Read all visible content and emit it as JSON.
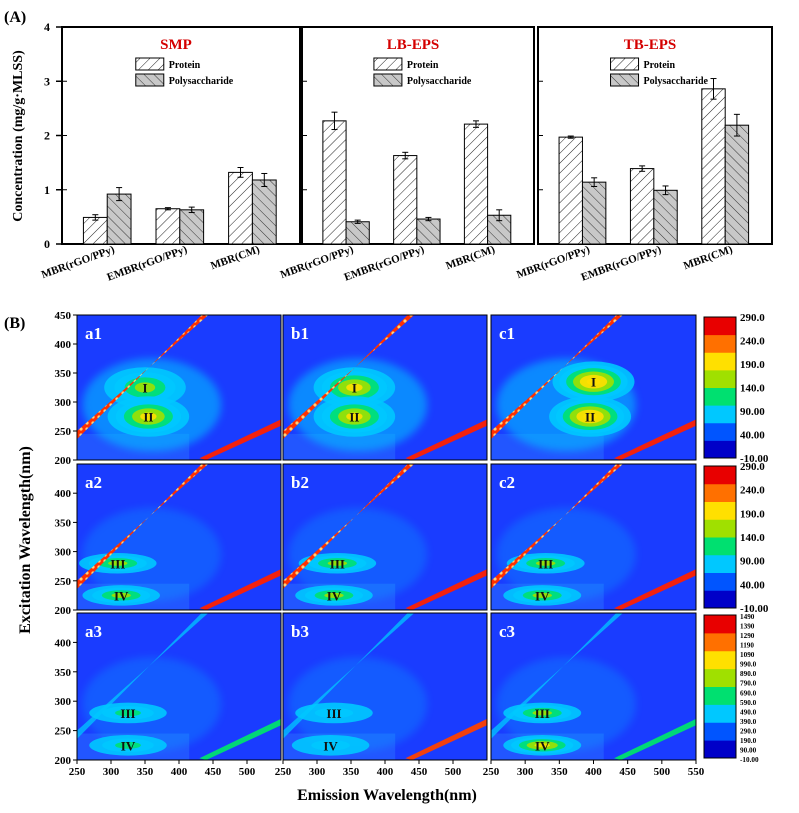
{
  "figure_labels": {
    "part_a": "(A)",
    "part_b": "(B)"
  },
  "chart_data": [
    {
      "type": "bar",
      "title": "SMP",
      "ylabel": "Concentration (mg/g·MLSS)",
      "ylim": [
        0,
        4
      ],
      "yticks": [
        "0",
        "1",
        "2",
        "3",
        "4"
      ],
      "categories": [
        "MBR(rGO/PPy)",
        "EMBR(rGO/PPy)",
        "MBR(CM)"
      ],
      "legend": {
        "position": "top-right"
      },
      "series": [
        {
          "name": "Protein",
          "values": [
            0.49,
            0.65,
            1.32
          ],
          "errors": [
            0.05,
            0.02,
            0.09
          ]
        },
        {
          "name": "Polysaccharide",
          "values": [
            0.92,
            0.63,
            1.18
          ],
          "errors": [
            0.12,
            0.05,
            0.12
          ]
        }
      ]
    },
    {
      "type": "bar",
      "title": "LB-EPS",
      "ylim": [
        0,
        4
      ],
      "categories": [
        "MBR(rGO/PPy)",
        "EMBR(rGO/PPy)",
        "MBR(CM)"
      ],
      "legend": {
        "position": "top-right"
      },
      "series": [
        {
          "name": "Protein",
          "values": [
            2.27,
            1.63,
            2.21
          ],
          "errors": [
            0.16,
            0.06,
            0.06
          ]
        },
        {
          "name": "Polysaccharide",
          "values": [
            0.41,
            0.46,
            0.53
          ],
          "errors": [
            0.03,
            0.03,
            0.1
          ]
        }
      ]
    },
    {
      "type": "bar",
      "title": "TB-EPS",
      "ylim": [
        0,
        4
      ],
      "categories": [
        "MBR(rGO/PPy)",
        "EMBR(rGO/PPy)",
        "MBR(CM)"
      ],
      "legend": {
        "position": "top-right"
      },
      "series": [
        {
          "name": "Protein",
          "values": [
            1.97,
            1.39,
            2.86
          ],
          "errors": [
            0.02,
            0.05,
            0.19
          ]
        },
        {
          "name": "Polysaccharide",
          "values": [
            1.14,
            0.99,
            2.19
          ],
          "errors": [
            0.08,
            0.08,
            0.2
          ]
        }
      ]
    },
    {
      "type": "heatmap",
      "description": "EEM fluorescence contour maps, 3 rows × 3 columns",
      "xlabel": "Emission Wavelength(nm)",
      "ylabel": "Excitation Wavelength(nm)",
      "xlim": [
        250,
        550
      ],
      "ylim": [
        200,
        450
      ],
      "x_ticks_per_column": [
        [
          "250",
          "300",
          "350",
          "400",
          "450",
          "500"
        ],
        [
          "250",
          "300",
          "350",
          "400",
          "450",
          "500"
        ],
        [
          "250",
          "300",
          "350",
          "400",
          "450",
          "500",
          "550"
        ]
      ],
      "y_ticks_per_row": [
        [
          "450",
          "400",
          "350",
          "300",
          "250",
          "200"
        ],
        [
          "400",
          "350",
          "300",
          "250",
          "200"
        ],
        [
          "400",
          "350",
          "300",
          "250",
          "200"
        ]
      ],
      "panels": [
        [
          {
            "label": "a1",
            "peaks": [
              {
                "name": "I",
                "ex": 325,
                "em": 350,
                "intensity": 0.62
              },
              {
                "name": "II",
                "ex": 275,
                "em": 355,
                "intensity": 0.66
              }
            ]
          },
          {
            "label": "b1",
            "peaks": [
              {
                "name": "I",
                "ex": 325,
                "em": 355,
                "intensity": 0.66
              },
              {
                "name": "II",
                "ex": 275,
                "em": 355,
                "intensity": 0.74
              }
            ]
          },
          {
            "label": "c1",
            "peaks": [
              {
                "name": "I",
                "ex": 335,
                "em": 400,
                "intensity": 0.92
              },
              {
                "name": "II",
                "ex": 275,
                "em": 395,
                "intensity": 0.85
              }
            ]
          }
        ],
        [
          {
            "label": "a2",
            "peaks": [
              {
                "name": "III",
                "ex": 280,
                "em": 310,
                "intensity": 0.6
              },
              {
                "name": "IV",
                "ex": 225,
                "em": 315,
                "intensity": 0.64
              }
            ]
          },
          {
            "label": "b2",
            "peaks": [
              {
                "name": "III",
                "ex": 280,
                "em": 330,
                "intensity": 0.52
              },
              {
                "name": "IV",
                "ex": 225,
                "em": 325,
                "intensity": 0.6
              }
            ]
          },
          {
            "label": "c2",
            "peaks": [
              {
                "name": "III",
                "ex": 280,
                "em": 330,
                "intensity": 0.55
              },
              {
                "name": "IV",
                "ex": 225,
                "em": 325,
                "intensity": 0.62
              }
            ]
          }
        ],
        [
          {
            "label": "a3",
            "peaks": [
              {
                "name": "III",
                "ex": 280,
                "em": 325,
                "intensity": 0.42
              },
              {
                "name": "IV",
                "ex": 225,
                "em": 325,
                "intensity": 0.48
              }
            ]
          },
          {
            "label": "b3",
            "peaks": [
              {
                "name": "III",
                "ex": 280,
                "em": 325,
                "intensity": 0.28
              },
              {
                "name": "IV",
                "ex": 225,
                "em": 320,
                "intensity": 0.3
              }
            ]
          },
          {
            "label": "c3",
            "peaks": [
              {
                "name": "III",
                "ex": 280,
                "em": 325,
                "intensity": 0.6
              },
              {
                "name": "IV",
                "ex": 225,
                "em": 325,
                "intensity": 0.66
              }
            ]
          }
        ]
      ],
      "colorbars": [
        [
          "290.0",
          "240.0",
          "190.0",
          "140.0",
          "90.00",
          "40.00",
          "-10.00"
        ],
        [
          "290.0",
          "240.0",
          "190.0",
          "140.0",
          "90.00",
          "40.00",
          "-10.00"
        ],
        [
          "1490",
          "1390",
          "1290",
          "1190",
          "1090",
          "990.0",
          "890.0",
          "790.0",
          "690.0",
          "590.0",
          "490.0",
          "390.0",
          "290.0",
          "190.0",
          "90.00",
          "-10.00"
        ]
      ],
      "colormap": [
        "#0000c8",
        "#0055ff",
        "#00c8ff",
        "#00e070",
        "#a0e000",
        "#ffe000",
        "#ff7000",
        "#e80000"
      ]
    }
  ]
}
